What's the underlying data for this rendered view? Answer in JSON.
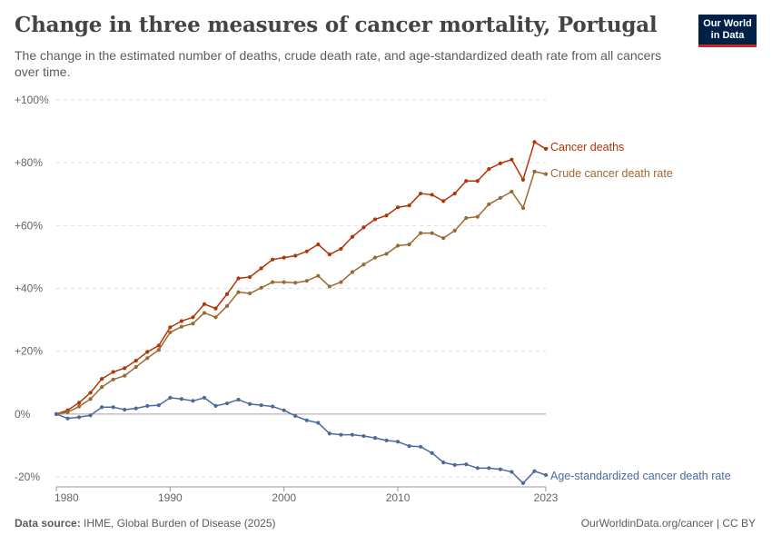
{
  "header": {
    "title": "Change in three measures of cancer mortality, Portugal",
    "subtitle": "The change in the estimated number of deaths, crude death rate, and age-standardized death rate from all cancers over time.",
    "logo_line1": "Our World",
    "logo_line2": "in Data"
  },
  "footer": {
    "source_label": "Data source:",
    "source_text": "IHME, Global Burden of Disease (2025)",
    "right_text": "OurWorldinData.org/cancer | CC BY"
  },
  "colors": {
    "deaths": "#b13507",
    "crude": "#9a6a32",
    "age": "#4c6a9c",
    "grid": "#dddddd",
    "zero": "#a1a1a1"
  },
  "chart_data": {
    "type": "line",
    "x_ticks": [
      "1980",
      "1990",
      "2000",
      "2010",
      "2023"
    ],
    "y_ticks": [
      "+100%",
      "+80%",
      "+60%",
      "+40%",
      "+20%",
      "0%",
      "-20%"
    ],
    "ylim": [
      -20,
      100
    ],
    "xlim": [
      1980,
      2023
    ],
    "grid": true,
    "legend": "inline-right",
    "x": [
      1980,
      1981,
      1982,
      1983,
      1984,
      1985,
      1986,
      1987,
      1988,
      1989,
      1990,
      1991,
      1992,
      1993,
      1994,
      1995,
      1996,
      1997,
      1998,
      1999,
      2000,
      2001,
      2002,
      2003,
      2004,
      2005,
      2006,
      2007,
      2008,
      2009,
      2010,
      2011,
      2012,
      2013,
      2014,
      2015,
      2016,
      2017,
      2018,
      2019,
      2020,
      2021,
      2022,
      2023
    ],
    "series": [
      {
        "name": "Cancer deaths",
        "key": "deaths",
        "values": [
          0,
          1.2,
          3.6,
          6.8,
          11.2,
          13.4,
          14.6,
          17.0,
          19.8,
          21.8,
          27.6,
          29.6,
          30.8,
          35.0,
          33.6,
          38.2,
          43.2,
          43.6,
          46.4,
          49.2,
          49.8,
          50.4,
          51.8,
          54.0,
          50.8,
          52.6,
          56.4,
          59.4,
          62.0,
          63.2,
          65.8,
          66.4,
          70.2,
          69.8,
          67.8,
          70.2,
          74.2,
          74.2,
          78.0,
          79.8,
          81.0,
          74.6,
          86.6,
          84.4
        ]
      },
      {
        "name": "Crude cancer death rate",
        "key": "crude",
        "values": [
          0,
          0.6,
          2.4,
          4.8,
          8.6,
          11.0,
          12.2,
          15.0,
          17.8,
          20.4,
          26.0,
          27.8,
          28.8,
          32.2,
          30.8,
          34.4,
          38.8,
          38.4,
          40.2,
          42.0,
          42.0,
          41.8,
          42.4,
          44.0,
          40.6,
          42.0,
          45.2,
          47.6,
          49.8,
          51.0,
          53.6,
          54.0,
          57.6,
          57.6,
          56.0,
          58.4,
          62.4,
          62.8,
          66.8,
          68.8,
          70.8,
          65.6,
          77.2,
          76.4
        ]
      },
      {
        "name": "Age-standardized cancer death rate",
        "key": "age",
        "values": [
          0,
          -1.4,
          -1.0,
          -0.4,
          2.2,
          2.2,
          1.4,
          1.8,
          2.6,
          2.8,
          5.2,
          4.8,
          4.2,
          5.2,
          2.6,
          3.4,
          4.6,
          3.2,
          2.8,
          2.4,
          1.2,
          -0.6,
          -2.0,
          -2.8,
          -6.2,
          -6.6,
          -6.6,
          -7.0,
          -7.6,
          -8.4,
          -8.8,
          -10.2,
          -10.4,
          -12.4,
          -15.4,
          -16.2,
          -16.0,
          -17.2,
          -17.2,
          -17.6,
          -18.4,
          -22.0,
          -18.2,
          -19.4
        ]
      }
    ]
  }
}
